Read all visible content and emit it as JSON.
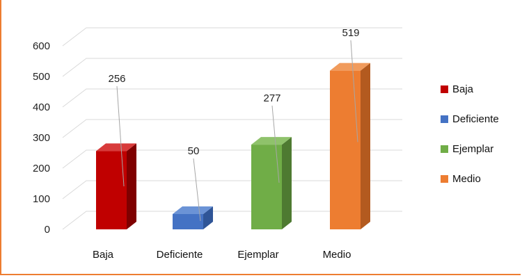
{
  "chart_data": {
    "type": "bar",
    "title": "",
    "xlabel": "",
    "ylabel": "",
    "categories": [
      "Baja",
      "Deficiente",
      "Ejemplar",
      "Medio"
    ],
    "values": [
      256,
      50,
      277,
      519
    ],
    "ylim": [
      0,
      600
    ],
    "yticks": [
      0,
      100,
      200,
      300,
      400,
      500,
      600
    ],
    "grid": true,
    "legend": "right",
    "style": "3d-column",
    "colors": [
      "#c00000",
      "#4472c4",
      "#70ad47",
      "#ed7d31"
    ],
    "side_colors": [
      "#7f0000",
      "#2f5597",
      "#4e7a31",
      "#b35a1f"
    ],
    "top_colors": [
      "#d83b3b",
      "#6b93d6",
      "#8fc26b",
      "#f19b5c"
    ]
  }
}
